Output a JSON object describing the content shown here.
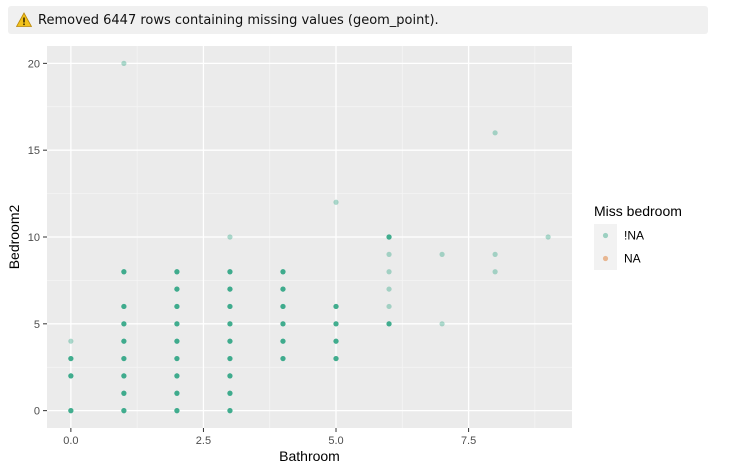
{
  "warning": {
    "icon": "warning-triangle-icon",
    "message": "Removed 6447 rows containing missing values (geom_point)."
  },
  "chart_data": {
    "type": "scatter",
    "xlabel": "Bathroom",
    "ylabel": "Bedroom2",
    "xlim": [
      -0.45,
      9.45
    ],
    "ylim": [
      -1.0,
      21.0
    ],
    "x_ticks": [
      0,
      2.5,
      5,
      7.5
    ],
    "x_tick_labels": [
      "0.0",
      "2.5",
      "5.0",
      "7.5"
    ],
    "y_ticks": [
      0,
      5,
      10,
      15,
      20
    ],
    "y_tick_labels": [
      "0",
      "5",
      "10",
      "15",
      "20"
    ],
    "grid": true,
    "legend": {
      "title": "Miss bedroom",
      "position": "right",
      "entries": [
        {
          "label": "!NA",
          "color": "#1b9e77"
        },
        {
          "label": "NA",
          "color": "#d95f02"
        }
      ]
    },
    "series": [
      {
        "name": "!NA",
        "color": "#1b9e77",
        "points": [
          [
            0,
            0
          ],
          [
            0,
            2
          ],
          [
            0,
            3
          ],
          [
            0,
            4
          ],
          [
            1,
            0
          ],
          [
            1,
            1
          ],
          [
            1,
            2
          ],
          [
            1,
            3
          ],
          [
            1,
            4
          ],
          [
            1,
            5
          ],
          [
            1,
            6
          ],
          [
            1,
            8
          ],
          [
            1,
            20
          ],
          [
            2,
            0
          ],
          [
            2,
            1
          ],
          [
            2,
            2
          ],
          [
            2,
            3
          ],
          [
            2,
            4
          ],
          [
            2,
            5
          ],
          [
            2,
            6
          ],
          [
            2,
            7
          ],
          [
            2,
            8
          ],
          [
            3,
            0
          ],
          [
            3,
            1
          ],
          [
            3,
            2
          ],
          [
            3,
            3
          ],
          [
            3,
            4
          ],
          [
            3,
            5
          ],
          [
            3,
            6
          ],
          [
            3,
            7
          ],
          [
            3,
            8
          ],
          [
            3,
            10
          ],
          [
            4,
            3
          ],
          [
            4,
            4
          ],
          [
            4,
            5
          ],
          [
            4,
            6
          ],
          [
            4,
            7
          ],
          [
            4,
            8
          ],
          [
            5,
            3
          ],
          [
            5,
            4
          ],
          [
            5,
            5
          ],
          [
            5,
            6
          ],
          [
            5,
            12
          ],
          [
            6,
            5
          ],
          [
            6,
            6
          ],
          [
            6,
            7
          ],
          [
            6,
            8
          ],
          [
            6,
            9
          ],
          [
            6,
            10
          ],
          [
            7,
            5
          ],
          [
            7,
            9
          ],
          [
            8,
            8
          ],
          [
            8,
            9
          ],
          [
            8,
            16
          ],
          [
            9,
            10
          ]
        ]
      }
    ]
  }
}
